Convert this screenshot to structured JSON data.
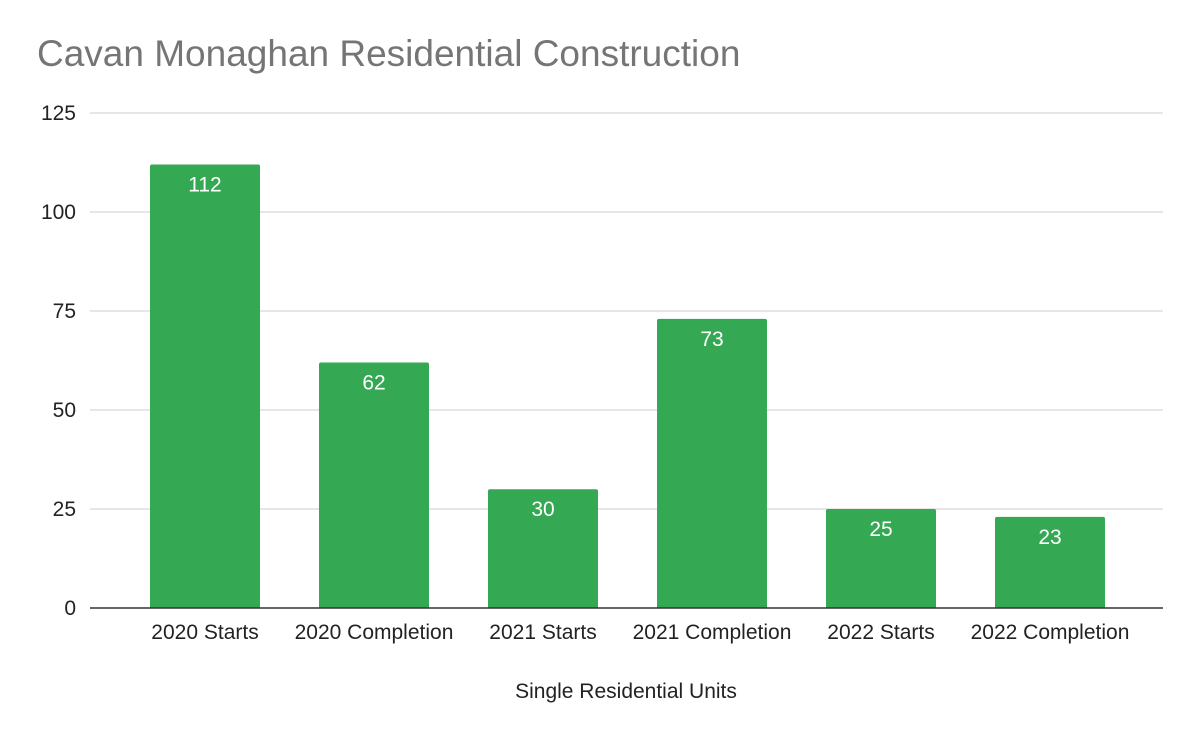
{
  "chart_data": {
    "type": "bar",
    "title": "Cavan Monaghan Residential Construction",
    "xlabel": "Single Residential Units",
    "ylabel": "",
    "categories": [
      "2020 Starts",
      "2020 Completion",
      "2021 Starts",
      "2021 Completion",
      "2022 Starts",
      "2022 Completion"
    ],
    "values": [
      112,
      62,
      30,
      73,
      25,
      23
    ],
    "ylim": [
      0,
      125
    ],
    "yticks": [
      0,
      25,
      50,
      75,
      100,
      125
    ],
    "grid": true,
    "legend": "none",
    "data_labels": true,
    "colors": {
      "bar": "#34a853",
      "grid": "#cccccc",
      "baseline": "#333333",
      "title": "#757575",
      "text": "#222222",
      "data_label": "#ffffff"
    }
  }
}
